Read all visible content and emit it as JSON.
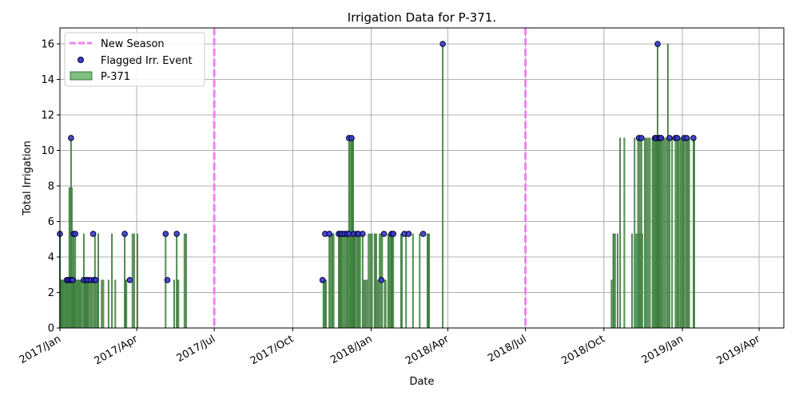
{
  "chart_data": {
    "type": "bar",
    "title": "Irrigation Data for P-371.",
    "xlabel": "Date",
    "ylabel": "Total Irrigation",
    "xlim": [
      "2017-01-01",
      "2019-04-30"
    ],
    "ylim": [
      0,
      16.9
    ],
    "grid": true,
    "legend_position": "top-left",
    "x_ticks": [
      {
        "date": "2017-01-01",
        "label": "2017/Jan"
      },
      {
        "date": "2017-04-01",
        "label": "2017/Apr"
      },
      {
        "date": "2017-07-01",
        "label": "2017/Jul"
      },
      {
        "date": "2017-10-01",
        "label": "2017/Oct"
      },
      {
        "date": "2018-01-01",
        "label": "2018/Jan"
      },
      {
        "date": "2018-04-01",
        "label": "2018/Apr"
      },
      {
        "date": "2018-07-01",
        "label": "2018/Jul"
      },
      {
        "date": "2018-10-01",
        "label": "2018/Oct"
      },
      {
        "date": "2019-01-01",
        "label": "2019/Jan"
      },
      {
        "date": "2019-04-01",
        "label": "2019/Apr"
      }
    ],
    "y_ticks": [
      0,
      2,
      4,
      6,
      8,
      10,
      12,
      14,
      16
    ],
    "legend": [
      {
        "label": "New Season",
        "kind": "dashed-line",
        "color": "#ee82ee"
      },
      {
        "label": "Flagged Irr. Event",
        "kind": "marker",
        "color": "#3a3acc"
      },
      {
        "label": "P-371",
        "kind": "bar",
        "color": "#7fbf7f"
      }
    ],
    "new_season_dates": [
      "2017-07-01",
      "2018-07-01"
    ],
    "series": [
      {
        "name": "P-371",
        "color": "#7fbf7f",
        "edge_color": "#1f5f1f",
        "points": [
          [
            "2017-01-01",
            5.3
          ],
          [
            "2017-01-02",
            2.7
          ],
          [
            "2017-01-03",
            2.7
          ],
          [
            "2017-01-04",
            2.7
          ],
          [
            "2017-01-05",
            2.7
          ],
          [
            "2017-01-06",
            2.7
          ],
          [
            "2017-01-07",
            2.7
          ],
          [
            "2017-01-08",
            2.7
          ],
          [
            "2017-01-09",
            2.7
          ],
          [
            "2017-01-10",
            2.7
          ],
          [
            "2017-01-11",
            2.7
          ],
          [
            "2017-01-12",
            7.9
          ],
          [
            "2017-01-13",
            7.9
          ],
          [
            "2017-01-14",
            10.7
          ],
          [
            "2017-01-15",
            7.9
          ],
          [
            "2017-01-16",
            2.7
          ],
          [
            "2017-01-17",
            5.3
          ],
          [
            "2017-01-18",
            2.7
          ],
          [
            "2017-01-19",
            5.3
          ],
          [
            "2017-01-20",
            2.7
          ],
          [
            "2017-01-21",
            2.7
          ],
          [
            "2017-01-22",
            2.7
          ],
          [
            "2017-01-23",
            2.7
          ],
          [
            "2017-01-24",
            2.7
          ],
          [
            "2017-01-25",
            2.7
          ],
          [
            "2017-01-26",
            2.7
          ],
          [
            "2017-01-27",
            2.7
          ],
          [
            "2017-01-29",
            5.3
          ],
          [
            "2017-01-30",
            2.7
          ],
          [
            "2017-01-31",
            2.7
          ],
          [
            "2017-02-01",
            2.7
          ],
          [
            "2017-02-02",
            2.7
          ],
          [
            "2017-02-03",
            2.7
          ],
          [
            "2017-02-04",
            2.7
          ],
          [
            "2017-02-06",
            2.7
          ],
          [
            "2017-02-07",
            2.7
          ],
          [
            "2017-02-09",
            2.7
          ],
          [
            "2017-02-11",
            5.3
          ],
          [
            "2017-02-12",
            2.7
          ],
          [
            "2017-02-14",
            2.7
          ],
          [
            "2017-02-15",
            5.3
          ],
          [
            "2017-02-19",
            2.7
          ],
          [
            "2017-02-21",
            2.7
          ],
          [
            "2017-02-27",
            2.7
          ],
          [
            "2017-03-03",
            5.3
          ],
          [
            "2017-03-07",
            2.7
          ],
          [
            "2017-03-18",
            5.3
          ],
          [
            "2017-03-19",
            2.7
          ],
          [
            "2017-03-20",
            2.7
          ],
          [
            "2017-03-27",
            5.3
          ],
          [
            "2017-03-29",
            5.3
          ],
          [
            "2017-04-02",
            5.3
          ],
          [
            "2017-05-05",
            5.3
          ],
          [
            "2017-05-15",
            2.7
          ],
          [
            "2017-05-18",
            5.3
          ],
          [
            "2017-05-19",
            2.7
          ],
          [
            "2017-05-20",
            2.7
          ],
          [
            "2017-05-27",
            5.3
          ],
          [
            "2017-05-29",
            5.3
          ],
          [
            "2017-11-06",
            2.7
          ],
          [
            "2017-11-07",
            2.7
          ],
          [
            "2017-11-08",
            2.7
          ],
          [
            "2017-11-09",
            2.7
          ],
          [
            "2017-11-13",
            5.3
          ],
          [
            "2017-11-14",
            5.3
          ],
          [
            "2017-11-16",
            5.3
          ],
          [
            "2017-11-17",
            5.3
          ],
          [
            "2017-11-18",
            5.3
          ],
          [
            "2017-11-24",
            5.3
          ],
          [
            "2017-11-25",
            5.3
          ],
          [
            "2017-11-26",
            5.3
          ],
          [
            "2017-11-27",
            5.3
          ],
          [
            "2017-11-28",
            5.3
          ],
          [
            "2017-11-30",
            5.3
          ],
          [
            "2017-12-01",
            5.3
          ],
          [
            "2017-12-03",
            5.3
          ],
          [
            "2017-12-04",
            5.3
          ],
          [
            "2017-12-05",
            5.3
          ],
          [
            "2017-12-06",
            10.7
          ],
          [
            "2017-12-07",
            10.7
          ],
          [
            "2017-12-08",
            5.3
          ],
          [
            "2017-12-09",
            10.7
          ],
          [
            "2017-12-10",
            10.7
          ],
          [
            "2017-12-11",
            10.7
          ],
          [
            "2017-12-12",
            5.3
          ],
          [
            "2017-12-13",
            5.3
          ],
          [
            "2017-12-14",
            5.3
          ],
          [
            "2017-12-16",
            5.3
          ],
          [
            "2017-12-17",
            5.3
          ],
          [
            "2017-12-18",
            5.3
          ],
          [
            "2017-12-19",
            5.3
          ],
          [
            "2017-12-22",
            5.3
          ],
          [
            "2017-12-23",
            2.7
          ],
          [
            "2017-12-25",
            2.7
          ],
          [
            "2017-12-27",
            2.7
          ],
          [
            "2017-12-29",
            5.3
          ],
          [
            "2017-12-31",
            5.3
          ],
          [
            "2018-01-02",
            5.3
          ],
          [
            "2018-01-05",
            5.3
          ],
          [
            "2018-01-06",
            5.3
          ],
          [
            "2018-01-07",
            5.3
          ],
          [
            "2018-01-09",
            2.7
          ],
          [
            "2018-01-11",
            5.3
          ],
          [
            "2018-01-13",
            5.3
          ],
          [
            "2018-01-14",
            5.3
          ],
          [
            "2018-01-17",
            2.7
          ],
          [
            "2018-01-18",
            2.7
          ],
          [
            "2018-01-21",
            5.3
          ],
          [
            "2018-01-22",
            5.3
          ],
          [
            "2018-01-24",
            5.3
          ],
          [
            "2018-01-25",
            5.3
          ],
          [
            "2018-01-26",
            5.3
          ],
          [
            "2018-01-27",
            5.3
          ],
          [
            "2018-02-05",
            5.3
          ],
          [
            "2018-02-06",
            5.3
          ],
          [
            "2018-02-11",
            5.3
          ],
          [
            "2018-02-19",
            5.3
          ],
          [
            "2018-02-27",
            5.3
          ],
          [
            "2018-03-08",
            5.3
          ],
          [
            "2018-03-09",
            5.3
          ],
          [
            "2018-03-10",
            5.3
          ],
          [
            "2018-03-26",
            16.0
          ],
          [
            "2018-10-10",
            2.7
          ],
          [
            "2018-10-12",
            5.3
          ],
          [
            "2018-10-13",
            5.3
          ],
          [
            "2018-10-14",
            5.3
          ],
          [
            "2018-10-17",
            5.3
          ],
          [
            "2018-10-20",
            10.7
          ],
          [
            "2018-10-25",
            10.7
          ],
          [
            "2018-11-03",
            5.3
          ],
          [
            "2018-11-06",
            10.7
          ],
          [
            "2018-11-08",
            5.3
          ],
          [
            "2018-11-10",
            10.7
          ],
          [
            "2018-11-11",
            5.3
          ],
          [
            "2018-11-12",
            10.7
          ],
          [
            "2018-11-13",
            5.3
          ],
          [
            "2018-11-14",
            10.7
          ],
          [
            "2018-11-15",
            5.3
          ],
          [
            "2018-11-18",
            10.7
          ],
          [
            "2018-11-20",
            10.7
          ],
          [
            "2018-11-22",
            10.7
          ],
          [
            "2018-11-24",
            10.7
          ],
          [
            "2018-11-27",
            10.7
          ],
          [
            "2018-11-28",
            10.7
          ],
          [
            "2018-11-29",
            10.7
          ],
          [
            "2018-11-30",
            10.7
          ],
          [
            "2018-12-01",
            10.7
          ],
          [
            "2018-12-02",
            10.7
          ],
          [
            "2018-12-03",
            16.0
          ],
          [
            "2018-12-04",
            10.7
          ],
          [
            "2018-12-05",
            10.7
          ],
          [
            "2018-12-06",
            10.7
          ],
          [
            "2018-12-07",
            10.7
          ],
          [
            "2018-12-08",
            10.7
          ],
          [
            "2018-12-09",
            10.7
          ],
          [
            "2018-12-11",
            10.7
          ],
          [
            "2018-12-13",
            10.7
          ],
          [
            "2018-12-15",
            16.0
          ],
          [
            "2018-12-17",
            10.7
          ],
          [
            "2018-12-20",
            10.7
          ],
          [
            "2018-12-24",
            10.7
          ],
          [
            "2018-12-26",
            10.7
          ],
          [
            "2018-12-27",
            10.7
          ],
          [
            "2018-12-28",
            10.7
          ],
          [
            "2018-12-30",
            10.7
          ],
          [
            "2019-01-01",
            10.7
          ],
          [
            "2019-01-02",
            10.7
          ],
          [
            "2019-01-04",
            10.7
          ],
          [
            "2019-01-06",
            10.7
          ],
          [
            "2019-01-07",
            10.7
          ],
          [
            "2019-01-08",
            10.7
          ],
          [
            "2019-01-09",
            10.7
          ],
          [
            "2019-01-14",
            10.7
          ],
          [
            "2019-01-15",
            10.7
          ]
        ]
      },
      {
        "name": "Flagged Irr. Event",
        "color": "#3a3acc",
        "edge_color": "#000033",
        "points": [
          [
            "2017-01-01",
            5.3
          ],
          [
            "2017-01-09",
            2.7
          ],
          [
            "2017-01-11",
            2.7
          ],
          [
            "2017-01-13",
            2.7
          ],
          [
            "2017-01-14",
            10.7
          ],
          [
            "2017-01-15",
            2.7
          ],
          [
            "2017-01-16",
            2.7
          ],
          [
            "2017-01-17",
            5.3
          ],
          [
            "2017-01-19",
            5.3
          ],
          [
            "2017-01-29",
            2.7
          ],
          [
            "2017-02-01",
            2.7
          ],
          [
            "2017-02-03",
            2.7
          ],
          [
            "2017-02-06",
            2.7
          ],
          [
            "2017-02-09",
            5.3
          ],
          [
            "2017-02-10",
            2.7
          ],
          [
            "2017-02-12",
            2.7
          ],
          [
            "2017-03-18",
            5.3
          ],
          [
            "2017-03-24",
            2.7
          ],
          [
            "2017-05-05",
            5.3
          ],
          [
            "2017-05-07",
            2.7
          ],
          [
            "2017-05-18",
            5.3
          ],
          [
            "2017-11-05",
            2.7
          ],
          [
            "2017-11-08",
            5.3
          ],
          [
            "2017-11-13",
            5.3
          ],
          [
            "2017-11-24",
            5.3
          ],
          [
            "2017-11-26",
            5.3
          ],
          [
            "2017-11-28",
            5.3
          ],
          [
            "2017-12-01",
            5.3
          ],
          [
            "2017-12-04",
            5.3
          ],
          [
            "2017-12-06",
            5.3
          ],
          [
            "2017-12-06",
            10.7
          ],
          [
            "2017-12-09",
            10.7
          ],
          [
            "2017-12-12",
            5.3
          ],
          [
            "2017-12-16",
            5.3
          ],
          [
            "2017-12-17",
            5.3
          ],
          [
            "2017-12-22",
            5.3
          ],
          [
            "2018-01-13",
            2.7
          ],
          [
            "2018-01-16",
            5.3
          ],
          [
            "2018-01-25",
            5.3
          ],
          [
            "2018-01-27",
            5.3
          ],
          [
            "2018-02-09",
            5.3
          ],
          [
            "2018-02-14",
            5.3
          ],
          [
            "2018-03-03",
            5.3
          ],
          [
            "2018-03-26",
            16.0
          ],
          [
            "2018-11-11",
            10.7
          ],
          [
            "2018-11-14",
            10.7
          ],
          [
            "2018-11-30",
            10.7
          ],
          [
            "2018-12-01",
            10.7
          ],
          [
            "2018-12-03",
            16.0
          ],
          [
            "2018-12-04",
            10.7
          ],
          [
            "2018-12-06",
            10.7
          ],
          [
            "2018-12-07",
            10.7
          ],
          [
            "2018-12-17",
            10.7
          ],
          [
            "2018-12-24",
            10.7
          ],
          [
            "2018-12-26",
            10.7
          ],
          [
            "2019-01-03",
            10.7
          ],
          [
            "2019-01-06",
            10.7
          ],
          [
            "2019-01-14",
            10.7
          ]
        ]
      }
    ]
  }
}
